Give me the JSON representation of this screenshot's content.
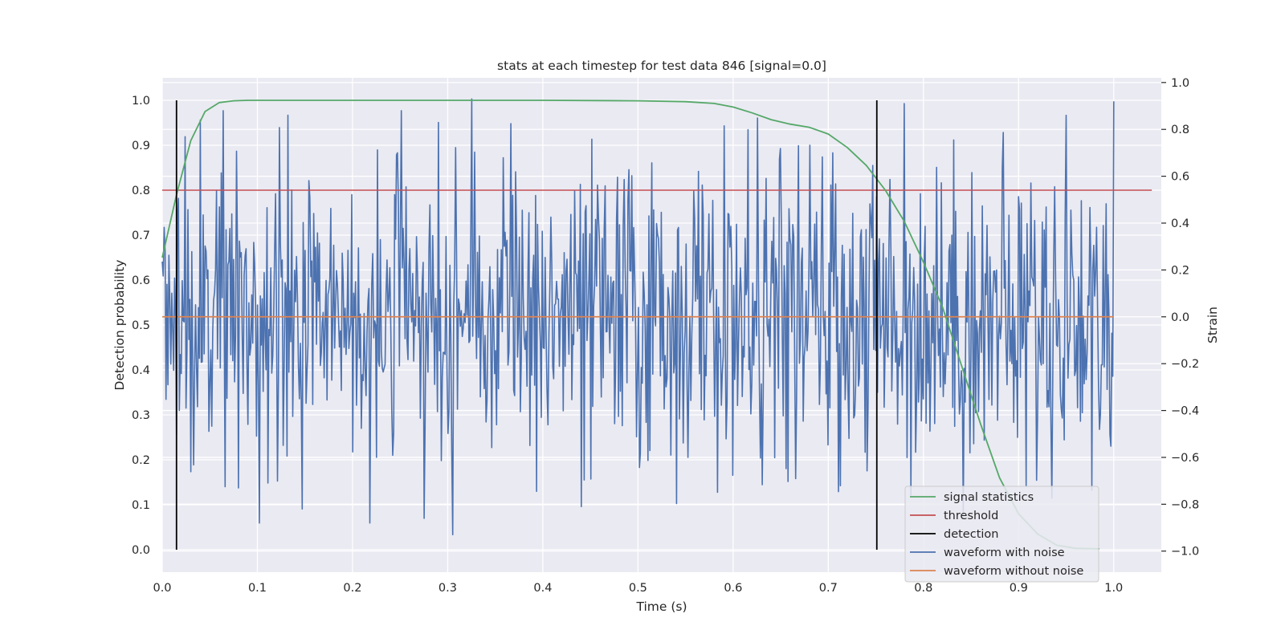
{
  "chart_data": {
    "type": "line",
    "title": "stats at each timestep for test data 846 [signal=0.0]",
    "xlabel": "Time (s)",
    "ylabel_left": "Detection probability",
    "ylabel_right": "Strain",
    "xlim": [
      0.0,
      1.05
    ],
    "ylim_left": [
      -0.05,
      1.05
    ],
    "ylim_right": [
      -1.09,
      1.02
    ],
    "x_ticks": [
      "0.0",
      "0.1",
      "0.2",
      "0.3",
      "0.4",
      "0.5",
      "0.6",
      "0.7",
      "0.8",
      "0.9",
      "1.0"
    ],
    "y_left_ticks": [
      "0.0",
      "0.1",
      "0.2",
      "0.3",
      "0.4",
      "0.5",
      "0.6",
      "0.7",
      "0.8",
      "0.9",
      "1.0"
    ],
    "y_right_ticks": [
      "−1.0",
      "−0.8",
      "−0.6",
      "−0.4",
      "−0.2",
      "0.0",
      "0.2",
      "0.4",
      "0.6",
      "0.8",
      "1.0"
    ],
    "grid": true,
    "legend_position": "lower right",
    "colors": {
      "signal_statistics": "#55a868",
      "threshold": "#c44e52",
      "detection": "#000000",
      "waveform_with_noise": "#4c72b0",
      "waveform_without_noise": "#dd8452",
      "background": "#eaeaf2",
      "grid": "#ffffff"
    },
    "series": [
      {
        "name": "signal statistics",
        "axis": "left",
        "x": [
          0.0,
          0.015,
          0.03,
          0.045,
          0.06,
          0.075,
          0.09,
          0.12,
          0.2,
          0.3,
          0.4,
          0.5,
          0.55,
          0.58,
          0.6,
          0.62,
          0.64,
          0.66,
          0.68,
          0.7,
          0.72,
          0.74,
          0.76,
          0.78,
          0.8,
          0.82,
          0.84,
          0.86,
          0.88,
          0.9,
          0.92,
          0.94,
          0.96,
          0.985
        ],
        "y": [
          0.65,
          0.79,
          0.91,
          0.975,
          0.995,
          0.999,
          1.0,
          1.0,
          1.0,
          1.0,
          1.0,
          0.999,
          0.997,
          0.993,
          0.985,
          0.972,
          0.957,
          0.947,
          0.94,
          0.925,
          0.895,
          0.855,
          0.8,
          0.73,
          0.64,
          0.54,
          0.41,
          0.28,
          0.16,
          0.08,
          0.035,
          0.01,
          0.003,
          0.002
        ]
      },
      {
        "name": "threshold",
        "axis": "left",
        "x": [
          0.0,
          1.04
        ],
        "y": [
          0.8,
          0.8
        ]
      },
      {
        "name": "detection",
        "axis": "left",
        "vlines": [
          0.015,
          0.751
        ],
        "y": [
          0.0,
          1.0
        ]
      },
      {
        "name": "waveform with noise",
        "axis": "right",
        "x_start": 0.0,
        "x_end": 1.0,
        "n_points": 1000,
        "noise_std": 0.33,
        "peaks": [
          {
            "x": 0.147,
            "y": -0.82
          },
          {
            "x": 0.305,
            "y": -0.93
          },
          {
            "x": 0.275,
            "y": -0.86
          },
          {
            "x": 0.325,
            "y": 0.93
          },
          {
            "x": 0.04,
            "y": 0.84
          },
          {
            "x": 0.29,
            "y": 0.83
          },
          {
            "x": 0.78,
            "y": 0.91
          },
          {
            "x": 1.0,
            "y": 0.92
          },
          {
            "x": 0.95,
            "y": 0.86
          },
          {
            "x": 0.44,
            "y": -0.81
          }
        ]
      },
      {
        "name": "waveform without noise",
        "axis": "right",
        "x": [
          0.0,
          1.0
        ],
        "y": [
          0.0,
          0.0
        ]
      }
    ],
    "legend": [
      "signal statistics",
      "threshold",
      "detection",
      "waveform with noise",
      "waveform without noise"
    ]
  }
}
